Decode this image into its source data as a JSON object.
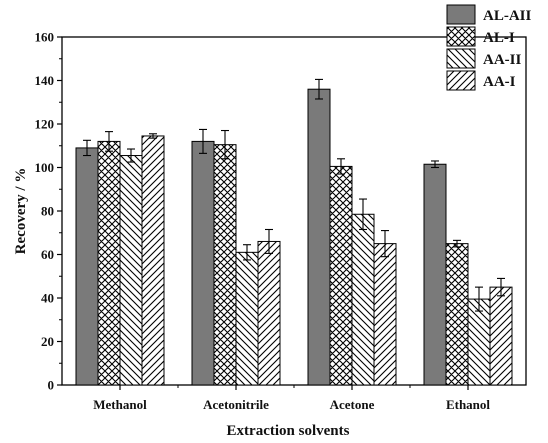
{
  "chart_data": {
    "type": "bar",
    "title": "",
    "xlabel": "Extraction  solvents",
    "ylabel": "Recovery / %",
    "ylim": [
      0,
      160
    ],
    "yticks": [
      0,
      20,
      40,
      60,
      80,
      100,
      120,
      140,
      160
    ],
    "categories": [
      "Methanol",
      "Acetonitrile",
      "Acetone",
      "Ethanol"
    ],
    "series": [
      {
        "name": "AL-AII",
        "pattern": "solid",
        "color": "#7a7a7a",
        "values": [
          109,
          112,
          136,
          101.5
        ],
        "errors": [
          3.5,
          5.5,
          4.5,
          1.5
        ]
      },
      {
        "name": "AL-I",
        "pattern": "crosshatch",
        "color": "#000000",
        "values": [
          112,
          110.5,
          100.5,
          65
        ],
        "errors": [
          4.5,
          6.5,
          3.5,
          1.5
        ]
      },
      {
        "name": "AA-II",
        "pattern": "backslash",
        "color": "#000000",
        "values": [
          105.5,
          61,
          78.5,
          39.5
        ],
        "errors": [
          3,
          3.5,
          7,
          5.5
        ]
      },
      {
        "name": "AA-I",
        "pattern": "slash",
        "color": "#000000",
        "values": [
          114.5,
          66,
          65,
          45
        ],
        "errors": [
          1,
          5.5,
          6,
          4
        ]
      }
    ],
    "legend_position": "top-right",
    "grid": false
  }
}
